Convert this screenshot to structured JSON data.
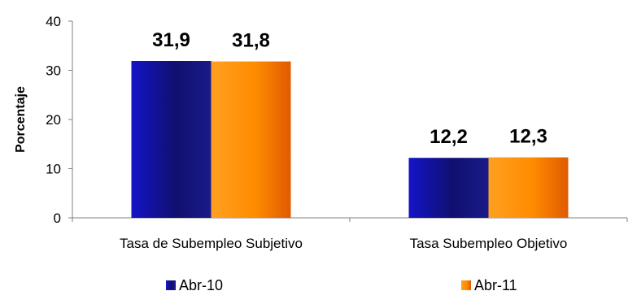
{
  "chart_data": {
    "type": "bar",
    "title": "",
    "xlabel": "",
    "ylabel": "Porcentaje",
    "ylim": [
      0,
      40
    ],
    "yticks": [
      "0",
      "10",
      "20",
      "30",
      "40"
    ],
    "categories": [
      "Tasa de Subempleo Subjetivo",
      "Tasa Subempleo Objetivo"
    ],
    "series": [
      {
        "name": "Abr-10",
        "values": [
          31.9,
          12.2
        ],
        "labels": [
          "31,9",
          "12,2"
        ],
        "color": "#1a1aa6"
      },
      {
        "name": "Abr-11",
        "values": [
          31.8,
          12.3
        ],
        "labels": [
          "31,8",
          "12,3"
        ],
        "color": "#ff8c1a"
      }
    ],
    "grid": false,
    "legend_position": "bottom"
  }
}
